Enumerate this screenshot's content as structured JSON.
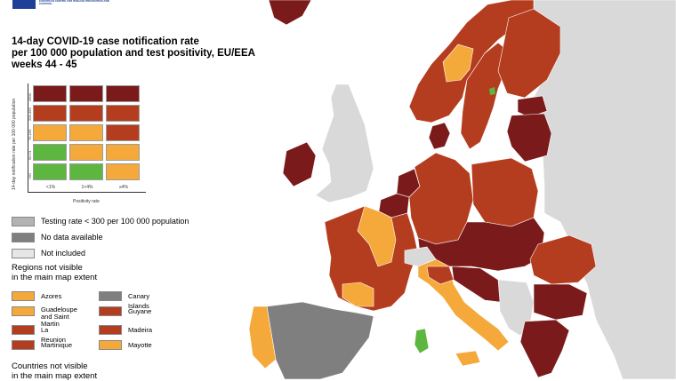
{
  "header": {
    "logo_text": "EUROPEAN CENTRE FOR DISEASE PREVENTION AND CONTROL",
    "title": "14-day COVID-19 case notification rate\nper 100 000 population and test positivity, EU/EEA\nweeks 44 - 45"
  },
  "matrix": {
    "y_axis_label": "14-day notification rate per 100 000 population",
    "x_axis_label": "Positivity rate",
    "rows": [
      "≥500",
      "200-499",
      "75-199",
      "50-74",
      "<50"
    ],
    "cols": [
      "<1%",
      "1<4%",
      "≥4%"
    ],
    "colors": [
      [
        "#7b1a1a",
        "#7b1a1a",
        "#7b1a1a"
      ],
      [
        "#b53d1f",
        "#b53d1f",
        "#b53d1f"
      ],
      [
        "#f4a93a",
        "#f4a93a",
        "#b53d1f"
      ],
      [
        "#5db63f",
        "#f4a93a",
        "#f4a93a"
      ],
      [
        "#5db63f",
        "#5db63f",
        "#f4a93a"
      ]
    ]
  },
  "legend": {
    "items": [
      {
        "label": "Testing rate < 300 per 100 000 population",
        "color": "#b3b3b3"
      },
      {
        "label": "No data available",
        "color": "#7f7f7f"
      },
      {
        "label": "Not included",
        "color": "#e6e6e6"
      }
    ]
  },
  "regions_section": {
    "title": "Regions not visible\nin the main map extent",
    "left": [
      {
        "label": "Azores",
        "color": "#f4a93a"
      },
      {
        "label": "Guadeloupe\nand Saint Martin",
        "color": "#f4a93a"
      },
      {
        "label": "La Reunion",
        "color": "#b53d1f"
      },
      {
        "label": "Martinique",
        "color": "#b53d1f"
      }
    ],
    "right": [
      {
        "label": "Canary Islands",
        "color": "#7f7f7f"
      },
      {
        "label": "Guyane",
        "color": "#b53d1f"
      },
      {
        "label": "Madeira",
        "color": "#b53d1f"
      },
      {
        "label": "Mayotte",
        "color": "#f4a93a"
      }
    ]
  },
  "countries_section": {
    "title": "Countries not visible\nin the main map extent"
  },
  "map_colors": {
    "sea": "#ffffff",
    "non_eu": "#d9d9d9",
    "dark_red": "#7b1a1a",
    "red": "#b53d1f",
    "orange": "#f4a93a",
    "green": "#5db63f",
    "grey": "#7f7f7f"
  }
}
